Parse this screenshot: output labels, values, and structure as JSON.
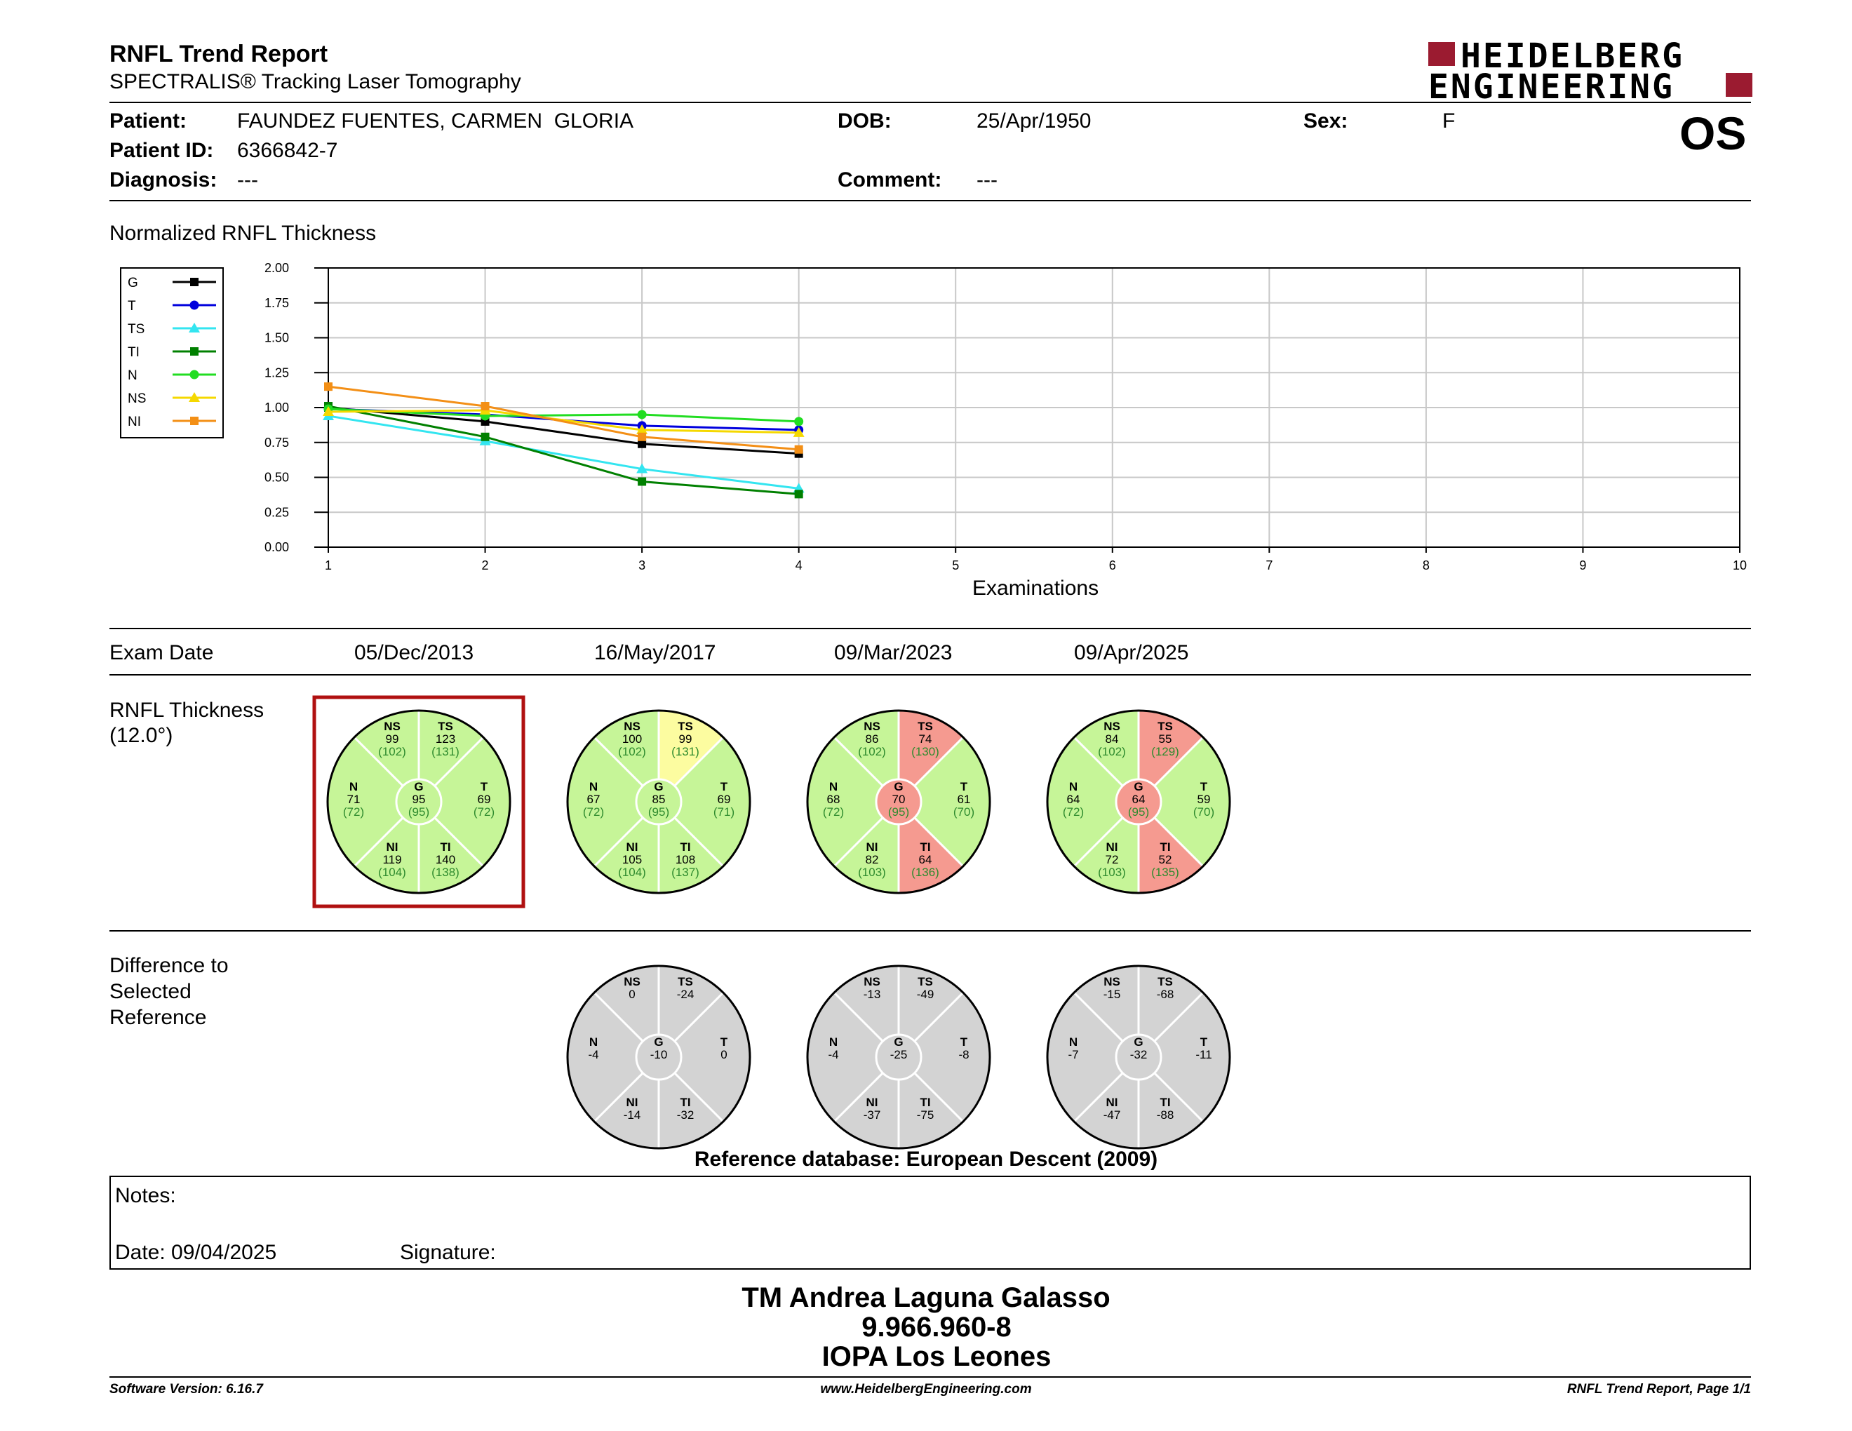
{
  "header": {
    "title": "RNFL Trend Report",
    "subtitle": "SPECTRALIS® Tracking Laser Tomography",
    "logo_line1": "HEIDELBERG",
    "logo_line2": "ENGINEERING",
    "eye": "OS"
  },
  "patient": {
    "patient_label": "Patient:",
    "patient_name": "FAUNDEZ FUENTES, CARMEN  GLORIA",
    "id_label": "Patient ID:",
    "patient_id": "6366842-7",
    "diagnosis_label": "Diagnosis:",
    "diagnosis": "---",
    "dob_label": "DOB:",
    "dob": "25/Apr/1950",
    "comment_label": "Comment:",
    "comment": "---",
    "sex_label": "Sex:",
    "sex": "F"
  },
  "chart_data": {
    "type": "line",
    "title": "Normalized RNFL Thickness",
    "xlabel": "Examinations",
    "ylabel": "",
    "x": [
      1,
      2,
      3,
      4
    ],
    "xlim": [
      1,
      10
    ],
    "ylim": [
      0,
      2
    ],
    "xticks": [
      "1",
      "2",
      "3",
      "4",
      "5",
      "6",
      "7",
      "8",
      "9",
      "10"
    ],
    "yticks": [
      "0.00",
      "0.25",
      "0.50",
      "0.75",
      "1.00",
      "1.25",
      "1.50",
      "1.75",
      "2.00"
    ],
    "grid": true,
    "legend_position": "left",
    "series": [
      {
        "name": "G",
        "color": "#000000",
        "marker": "square",
        "values": [
          1.0,
          0.9,
          0.74,
          0.67
        ]
      },
      {
        "name": "T",
        "color": "#0000dd",
        "marker": "circle",
        "values": [
          0.99,
          0.95,
          0.87,
          0.84
        ]
      },
      {
        "name": "TS",
        "color": "#33e5f0",
        "marker": "triangle",
        "values": [
          0.94,
          0.76,
          0.56,
          0.42
        ]
      },
      {
        "name": "TI",
        "color": "#008000",
        "marker": "square",
        "values": [
          1.01,
          0.79,
          0.47,
          0.38
        ]
      },
      {
        "name": "N",
        "color": "#22dd22",
        "marker": "circle",
        "values": [
          0.99,
          0.94,
          0.95,
          0.9
        ]
      },
      {
        "name": "NS",
        "color": "#f5d800",
        "marker": "triangle",
        "values": [
          0.97,
          0.98,
          0.84,
          0.82
        ]
      },
      {
        "name": "NI",
        "color": "#f38f16",
        "marker": "square",
        "values": [
          1.15,
          1.01,
          0.79,
          0.7
        ]
      }
    ]
  },
  "exam_row": {
    "label": "Exam Date",
    "dates": [
      "05/Dec/2013",
      "16/May/2017",
      "09/Mar/2023",
      "09/Apr/2025"
    ]
  },
  "thickness": {
    "label_line1": "RNFL Thickness",
    "label_line2": "(12.0°)",
    "sectors": [
      "NS",
      "TS",
      "N",
      "G",
      "T",
      "NI",
      "TI"
    ],
    "exams": [
      {
        "selected": true,
        "values": {
          "NS": "99",
          "TS": "123",
          "N": "71",
          "G": "95",
          "T": "69",
          "NI": "119",
          "TI": "140"
        },
        "normals": {
          "NS": "(102)",
          "TS": "(131)",
          "N": "(72)",
          "G": "(95)",
          "T": "(72)",
          "NI": "(104)",
          "TI": "(138)"
        },
        "status": {
          "NS": "green",
          "TS": "green",
          "N": "green",
          "G": "green",
          "T": "green",
          "NI": "green",
          "TI": "green"
        }
      },
      {
        "selected": false,
        "values": {
          "NS": "100",
          "TS": "99",
          "N": "67",
          "G": "85",
          "T": "69",
          "NI": "105",
          "TI": "108"
        },
        "normals": {
          "NS": "(102)",
          "TS": "(131)",
          "N": "(72)",
          "G": "(95)",
          "T": "(71)",
          "NI": "(104)",
          "TI": "(137)"
        },
        "status": {
          "NS": "green",
          "TS": "yellow",
          "N": "green",
          "G": "green",
          "T": "green",
          "NI": "green",
          "TI": "green"
        }
      },
      {
        "selected": false,
        "values": {
          "NS": "86",
          "TS": "74",
          "N": "68",
          "G": "70",
          "T": "61",
          "NI": "82",
          "TI": "64"
        },
        "normals": {
          "NS": "(102)",
          "TS": "(130)",
          "N": "(72)",
          "G": "(95)",
          "T": "(70)",
          "NI": "(103)",
          "TI": "(136)"
        },
        "status": {
          "NS": "green",
          "TS": "red",
          "N": "green",
          "G": "red",
          "T": "green",
          "NI": "green",
          "TI": "red"
        }
      },
      {
        "selected": false,
        "values": {
          "NS": "84",
          "TS": "55",
          "N": "64",
          "G": "64",
          "T": "59",
          "NI": "72",
          "TI": "52"
        },
        "normals": {
          "NS": "(102)",
          "TS": "(129)",
          "N": "(72)",
          "G": "(95)",
          "T": "(70)",
          "NI": "(103)",
          "TI": "(135)"
        },
        "status": {
          "NS": "green",
          "TS": "red",
          "N": "green",
          "G": "red",
          "T": "green",
          "NI": "green",
          "TI": "red"
        }
      }
    ],
    "colors": {
      "green": "#c6f598",
      "yellow": "#fcfca0",
      "red": "#f59a90",
      "normal_text": "#2e8b2e"
    }
  },
  "difference": {
    "label_line1": "Difference to",
    "label_line2": "Selected",
    "label_line3": "Reference",
    "fill": "#d3d3d3",
    "exams": [
      {
        "NS": "0",
        "TS": "-24",
        "N": "-4",
        "G": "-10",
        "T": "0",
        "NI": "-14",
        "TI": "-32"
      },
      {
        "NS": "-13",
        "TS": "-49",
        "N": "-4",
        "G": "-25",
        "T": "-8",
        "NI": "-37",
        "TI": "-75"
      },
      {
        "NS": "-15",
        "TS": "-68",
        "N": "-7",
        "G": "-32",
        "T": "-11",
        "NI": "-47",
        "TI": "-88"
      }
    ]
  },
  "reference_db": "Reference database: European Descent (2009)",
  "notes": {
    "label": "Notes:",
    "date": "Date: 09/04/2025",
    "signature": "Signature:"
  },
  "signer": {
    "name": "TM Andrea Laguna Galasso",
    "rut": "9.966.960-8",
    "institution": "IOPA Los Leones"
  },
  "footer": {
    "version": "Software Version: 6.16.7",
    "website": "www.HeidelbergEngineering.com",
    "page": "RNFL Trend Report, Page 1/1"
  },
  "brand": {
    "logo_red": "#9b1b30"
  }
}
